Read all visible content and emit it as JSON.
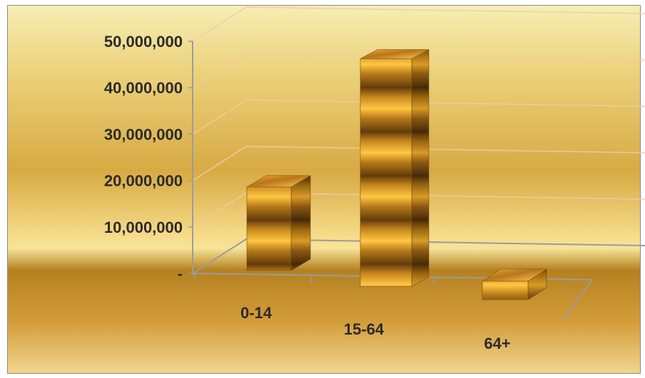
{
  "chart_data": {
    "type": "bar",
    "categories": [
      "0-14",
      "15-64",
      "64+"
    ],
    "values": [
      18000000,
      49000000,
      4000000
    ],
    "y_tick_labels": [
      "-",
      "10,000,000",
      "20,000,000",
      "30,000,000",
      "40,000,000",
      "50,000,000"
    ],
    "y_ticks": [
      0,
      10000000,
      20000000,
      30000000,
      40000000,
      50000000
    ],
    "ylim": [
      0,
      50000000
    ],
    "grid": true,
    "legend": "none",
    "title": "",
    "xlabel": "",
    "ylabel": "",
    "colors": {
      "bar_light": "#f6b32c",
      "bar_dark": "#6a3f0b",
      "grid": "#f3c9a8",
      "axis": "#9c9c9c",
      "text": "#2b2b2b"
    }
  }
}
